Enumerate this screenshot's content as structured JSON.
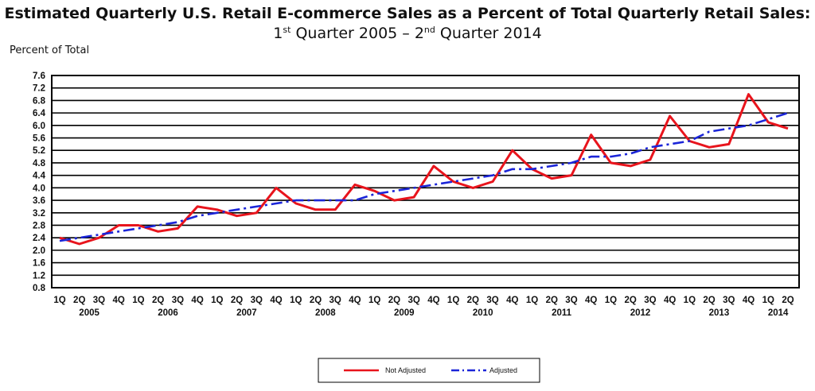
{
  "header": {
    "title_line1": "Estimated Quarterly U.S. Retail E-commerce Sales as a Percent of Total Quarterly Retail Sales:",
    "title_line2_a": "1",
    "title_line2_sup_a": "st",
    "title_line2_b": " Quarter 2005 – 2",
    "title_line2_sup_b": "nd",
    "title_line2_c": " Quarter 2014"
  },
  "chart_data": {
    "type": "line",
    "ylabel": "Percent of Total",
    "ylim": [
      0.8,
      7.6
    ],
    "y_ticks": [
      "7.6",
      "7.2",
      "6.8",
      "6.4",
      "6.0",
      "5.6",
      "5.2",
      "4.8",
      "4.4",
      "4.0",
      "3.6",
      "3.2",
      "2.8",
      "2.4",
      "2.0",
      "1.6",
      "1.2",
      "0.8"
    ],
    "grid": true,
    "legend_position": "bottom-center",
    "quarter_labels": [
      "1Q",
      "2Q",
      "3Q",
      "4Q",
      "1Q",
      "2Q",
      "3Q",
      "4Q",
      "1Q",
      "2Q",
      "3Q",
      "4Q",
      "1Q",
      "2Q",
      "3Q",
      "4Q",
      "1Q",
      "2Q",
      "3Q",
      "4Q",
      "1Q",
      "2Q",
      "3Q",
      "4Q",
      "1Q",
      "2Q",
      "3Q",
      "4Q",
      "1Q",
      "2Q",
      "3Q",
      "4Q",
      "1Q",
      "2Q",
      "3Q",
      "4Q",
      "1Q",
      "2Q"
    ],
    "years": [
      "2005",
      "2006",
      "2007",
      "2008",
      "2009",
      "2010",
      "2011",
      "2012",
      "2013",
      "2014"
    ],
    "series": [
      {
        "name": "Not Adjusted",
        "color": "#e8141c",
        "style": "solid",
        "values": [
          2.4,
          2.2,
          2.4,
          2.8,
          2.8,
          2.6,
          2.7,
          3.4,
          3.3,
          3.1,
          3.2,
          4.0,
          3.5,
          3.3,
          3.3,
          4.1,
          3.9,
          3.6,
          3.7,
          4.7,
          4.2,
          4.0,
          4.2,
          5.2,
          4.6,
          4.3,
          4.4,
          5.7,
          4.8,
          4.7,
          4.9,
          6.3,
          5.5,
          5.3,
          5.4,
          7.0,
          6.1,
          5.9
        ]
      },
      {
        "name": "Adjusted",
        "color": "#1b25d8",
        "style": "dash-dot",
        "values": [
          2.3,
          2.4,
          2.5,
          2.6,
          2.7,
          2.8,
          2.9,
          3.1,
          3.2,
          3.3,
          3.4,
          3.5,
          3.6,
          3.6,
          3.6,
          3.6,
          3.8,
          3.9,
          4.0,
          4.1,
          4.2,
          4.3,
          4.4,
          4.6,
          4.6,
          4.7,
          4.8,
          5.0,
          5.0,
          5.1,
          5.3,
          5.4,
          5.5,
          5.8,
          5.9,
          6.0,
          6.2,
          6.4
        ]
      }
    ]
  }
}
